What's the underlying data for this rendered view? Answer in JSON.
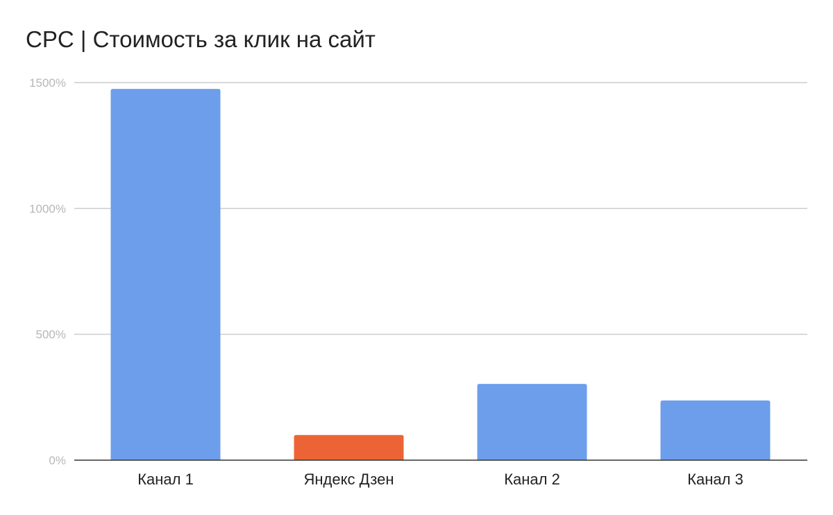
{
  "chart_data": {
    "type": "bar",
    "title": "CPC | Стоимость за клик на сайт",
    "categories": [
      "Канал 1",
      "Яндекс Дзен",
      "Канал 2",
      "Канал 3"
    ],
    "values": [
      1475,
      100,
      303,
      237
    ],
    "value_unit": "%",
    "bar_colors": [
      "#6d9eeb",
      "#ec6435",
      "#6d9eeb",
      "#6d9eeb"
    ],
    "ylim": [
      0,
      1500
    ],
    "yticks": [
      0,
      500,
      1000,
      1500
    ],
    "ytick_labels": [
      "0%",
      "500%",
      "1000%",
      "1500%"
    ],
    "xlabel": "",
    "ylabel": "",
    "grid": true,
    "legend": "none"
  }
}
